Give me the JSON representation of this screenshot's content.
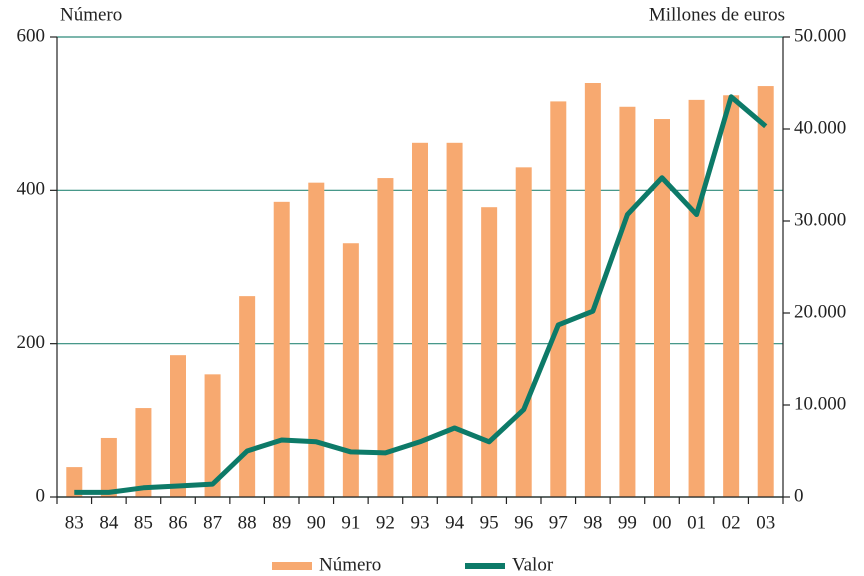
{
  "chart_data": {
    "type": "bar_line",
    "y_label": "Número",
    "y2_label": "Millones de euros",
    "categories": [
      "83",
      "84",
      "85",
      "86",
      "87",
      "88",
      "89",
      "90",
      "91",
      "92",
      "93",
      "94",
      "95",
      "96",
      "97",
      "98",
      "99",
      "00",
      "01",
      "02",
      "03"
    ],
    "series": [
      {
        "name": "Número",
        "type": "bar",
        "color": "#f7a970",
        "axis": "y",
        "values": [
          39,
          77,
          116,
          185,
          160,
          262,
          385,
          410,
          331,
          416,
          462,
          462,
          378,
          430,
          516,
          540,
          509,
          493,
          518,
          524,
          536
        ]
      },
      {
        "name": "Valor",
        "type": "line",
        "color": "#0d7a68",
        "axis": "y2",
        "values": [
          500,
          500,
          1000,
          1200,
          1400,
          5000,
          6200,
          6000,
          4900,
          4800,
          6000,
          7500,
          6000,
          9500,
          18700,
          20200,
          30700,
          34700,
          30700,
          43500,
          40300
        ]
      }
    ],
    "ylim": [
      0,
      600
    ],
    "yticks": [
      0,
      200,
      400,
      600
    ],
    "y2lim": [
      0,
      50000
    ],
    "y2ticks": [
      0,
      {
        "value": 10000,
        "label": "10.000"
      },
      {
        "value": 20000,
        "label": "20.000"
      },
      {
        "value": 30000,
        "label": "30.000"
      },
      {
        "value": 40000,
        "label": "40.000"
      },
      {
        "value": 50000,
        "label": "50.000"
      }
    ],
    "grid": true,
    "grid_color": "#2e8a7a",
    "legend": "bottom"
  }
}
